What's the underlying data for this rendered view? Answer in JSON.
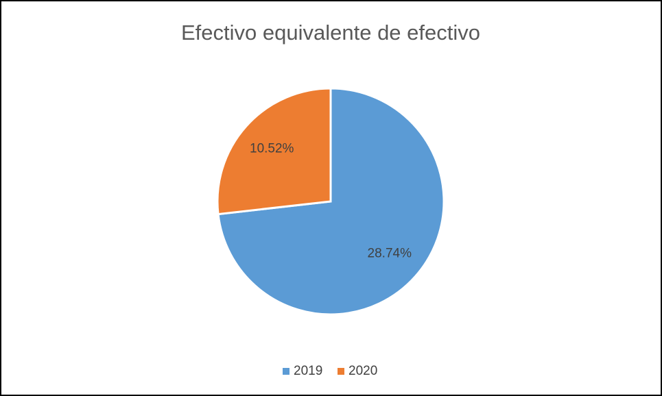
{
  "chart_data": {
    "type": "pie",
    "title": "Efectivo equivalente de efectivo",
    "categories": [
      "2019",
      "2020"
    ],
    "values": [
      28.74,
      10.52
    ],
    "value_labels": [
      "28.74%",
      "10.52%"
    ],
    "colors": [
      "#5b9bd5",
      "#ed7d31"
    ],
    "legend": "bottom"
  }
}
